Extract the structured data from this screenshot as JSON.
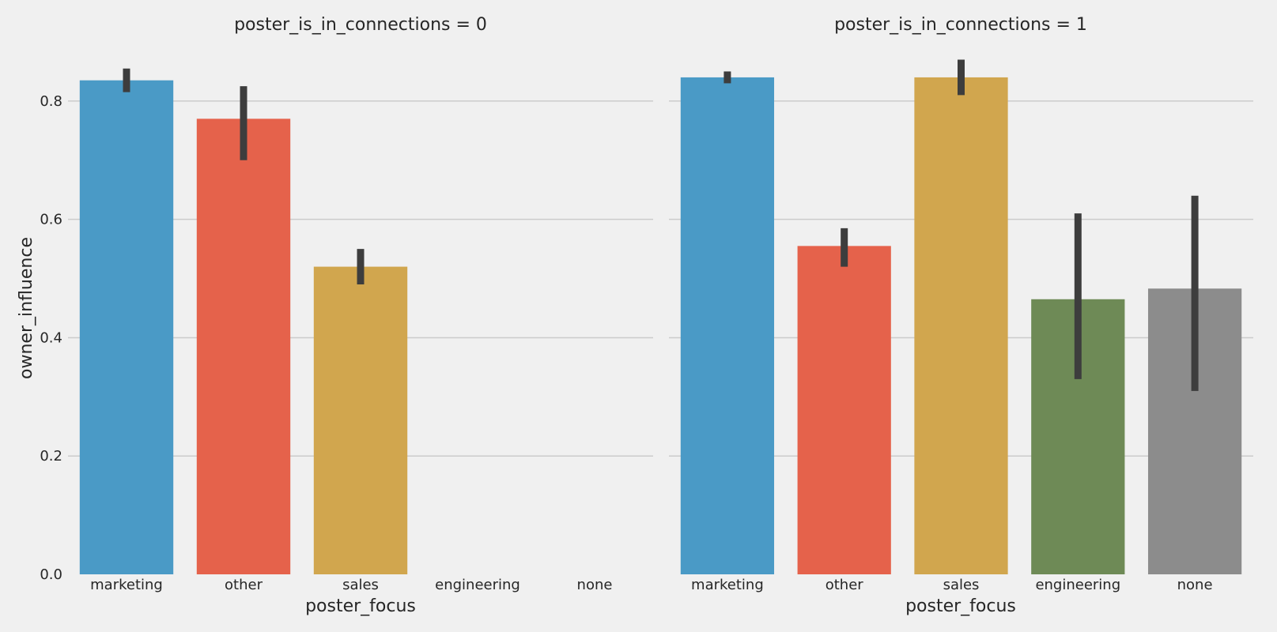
{
  "chart_data": {
    "type": "bar",
    "facet_variable": "poster_is_in_connections",
    "xlabel": "poster_focus",
    "ylabel": "owner_influence",
    "ylim": [
      0,
      0.9
    ],
    "yticks": [
      "0.0",
      "0.2",
      "0.4",
      "0.6",
      "0.8"
    ],
    "ytick_values": [
      0,
      0.2,
      0.4,
      0.6,
      0.8
    ],
    "categories": [
      "marketing",
      "other",
      "sales",
      "engineering",
      "none"
    ],
    "colors": [
      "#4a9ac6",
      "#e5624b",
      "#d1a64e",
      "#6e8a56",
      "#8c8c8c"
    ],
    "errorbar_color": "#3d3d3d",
    "grid": "horizontal",
    "panels": [
      {
        "title": "poster_is_in_connections = 0",
        "values": [
          0.835,
          0.77,
          0.52,
          null,
          null
        ],
        "ci_low": [
          0.815,
          0.7,
          0.49,
          null,
          null
        ],
        "ci_high": [
          0.855,
          0.825,
          0.55,
          null,
          null
        ]
      },
      {
        "title": "poster_is_in_connections = 1",
        "values": [
          0.84,
          0.555,
          0.84,
          0.465,
          0.483
        ],
        "ci_low": [
          0.83,
          0.52,
          0.81,
          0.33,
          0.31
        ],
        "ci_high": [
          0.85,
          0.585,
          0.87,
          0.61,
          0.64
        ]
      }
    ]
  }
}
